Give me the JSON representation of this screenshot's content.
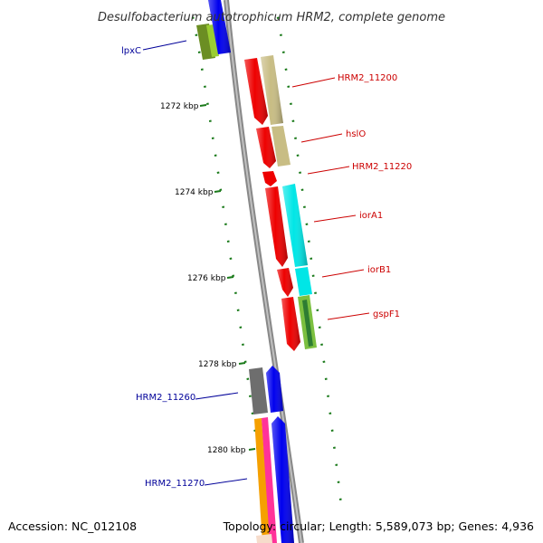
{
  "title": "Desulfobacterium autotrophicum HRM2, complete genome",
  "accession": "Accession: NC_012108",
  "summary": "Topology: circular; Length: 5,589,073 bp; Genes: 4,936",
  "ruler": {
    "labels": [
      "1272 kbp",
      "1274 kbp",
      "1276 kbp",
      "1278 kbp",
      "1280 kbp"
    ]
  },
  "gene_labels": {
    "lpxC": "lpxC",
    "hrm2_11200": "HRM2_11200",
    "hslO": "hslO",
    "hrm2_11220": "HRM2_11220",
    "iorA1": "iorA1",
    "iorB1": "iorB1",
    "gspF1": "gspF1",
    "hrm2_11260": "HRM2_11260",
    "hrm2_11270": "HRM2_11270"
  },
  "colors": {
    "forward_label": "#cc0000",
    "reverse_label": "#000099",
    "backbone": "#888888",
    "tick": "#1a7a1a",
    "red": "#ee0000",
    "khaki": "#c8bd84",
    "cyan": "#00e6e6",
    "green": "#7cc040",
    "olive": "#6b8e23",
    "blue": "#0000ee",
    "gray": "#6e6e6e",
    "orange": "#f5a000",
    "pink": "#ff3399",
    "light": "#f6dccb"
  }
}
